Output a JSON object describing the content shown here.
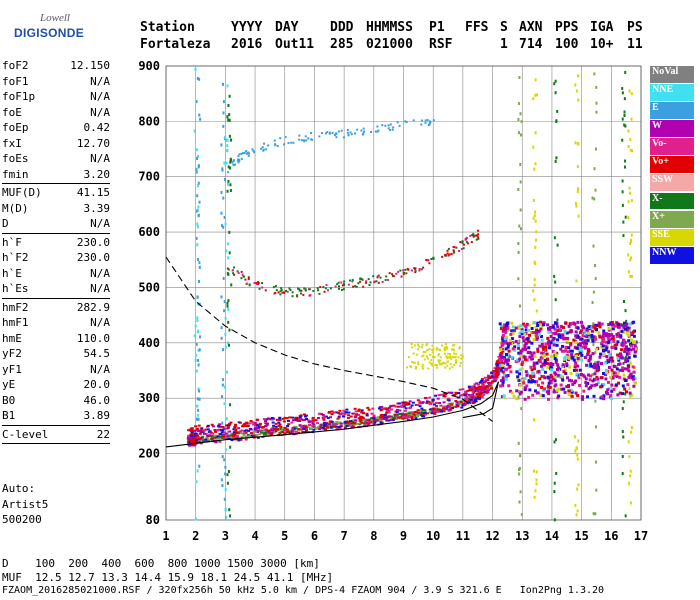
{
  "logo": {
    "line1": "Lowell",
    "line2": "DIGISONDE"
  },
  "header": {
    "labels": [
      "Station",
      "YYYY",
      "DAY",
      "DDD",
      "HHMMSS",
      "P1",
      "FFS",
      "S",
      "AXN",
      "PPS",
      "IGA",
      "PS"
    ],
    "values": [
      "Fortaleza",
      "2016",
      "Out11",
      "285",
      "021000",
      "RSF",
      "1",
      "714",
      "100",
      "10+",
      "11"
    ]
  },
  "params": [
    [
      {
        "label": "foF2",
        "value": "12.150"
      },
      {
        "label": "foF1",
        "value": "N/A"
      },
      {
        "label": "foF1p",
        "value": "N/A"
      },
      {
        "label": "foE",
        "value": "N/A"
      },
      {
        "label": "foEp",
        "value": "0.42"
      },
      {
        "label": "fxI",
        "value": "12.70"
      },
      {
        "label": "foEs",
        "value": "N/A"
      },
      {
        "label": "fmin",
        "value": "3.20"
      }
    ],
    [
      {
        "label": "MUF(D)",
        "value": "41.15"
      },
      {
        "label": "M(D)",
        "value": "3.39"
      },
      {
        "label": "D",
        "value": "N/A"
      }
    ],
    [
      {
        "label": "h`F",
        "value": "230.0"
      },
      {
        "label": "h`F2",
        "value": "230.0"
      },
      {
        "label": "h`E",
        "value": "N/A"
      },
      {
        "label": "h`Es",
        "value": "N/A"
      }
    ],
    [
      {
        "label": "hmF2",
        "value": "282.9"
      },
      {
        "label": "hmF1",
        "value": "N/A"
      },
      {
        "label": "hmE",
        "value": "110.0"
      },
      {
        "label": "yF2",
        "value": "54.5"
      },
      {
        "label": "yF1",
        "value": "N/A"
      },
      {
        "label": "yE",
        "value": "20.0"
      },
      {
        "label": "B0",
        "value": "46.0"
      },
      {
        "label": "B1",
        "value": "3.89"
      }
    ],
    [
      {
        "label": "C-level",
        "value": "22"
      }
    ]
  ],
  "auto": [
    "Auto:",
    "Artist5",
    "500200"
  ],
  "legend": [
    {
      "label": "NoVal",
      "color": "#808080"
    },
    {
      "label": "NNE",
      "color": "#40e0f0"
    },
    {
      "label": "E",
      "color": "#3b9fe0"
    },
    {
      "label": "W",
      "color": "#b000b0"
    },
    {
      "label": "Vo-",
      "color": "#e0208c"
    },
    {
      "label": "Vo+",
      "color": "#e00000"
    },
    {
      "label": "SSW",
      "color": "#f4a8a8"
    },
    {
      "label": "X-",
      "color": "#107818"
    },
    {
      "label": "X+",
      "color": "#80a850"
    },
    {
      "label": "SSE",
      "color": "#d8d800"
    },
    {
      "label": "NNW",
      "color": "#1010e0"
    }
  ],
  "bottom": {
    "d_line": "D    100  200  400  600  800 1000 1500 3000 [km]",
    "muf_line": "MUF  12.5 12.7 13.3 14.4 15.9 18.1 24.5 41.1 [MHz]",
    "file_line": "FZAOM_2016285021000.RSF / 320fx256h 50 kHz 5.0 km / DPS-4 FZAOM 904 / 3.9 S 321.6 E   Ion2Png 1.3.20"
  },
  "chart_data": {
    "type": "scatter",
    "x_ticks": [
      "1",
      "2",
      "3",
      "4",
      "5",
      "6",
      "7",
      "8",
      "9",
      "10",
      "11",
      "12",
      "13",
      "14",
      "15",
      "16",
      "17"
    ],
    "y_ticks": [
      "200",
      "300",
      "400",
      "500",
      "600",
      "700",
      "800",
      "900"
    ],
    "x_range": [
      1,
      17
    ],
    "y_range": [
      80,
      900
    ],
    "grid": true,
    "dash_curve": {
      "x": [
        1,
        2,
        3,
        4,
        5,
        6,
        7,
        8,
        9,
        10,
        11,
        12
      ],
      "y": [
        555,
        475,
        430,
        400,
        378,
        362,
        350,
        340,
        330,
        318,
        298,
        258
      ]
    },
    "solid_curve": {
      "x": [
        1,
        3,
        5,
        7,
        9,
        10,
        11,
        11.6,
        12,
        12.2,
        12,
        11.7,
        11
      ],
      "y": [
        212,
        225,
        234,
        244,
        258,
        266,
        278,
        290,
        305,
        330,
        282,
        272,
        265
      ]
    },
    "trace_o": {
      "x": [
        1.7,
        2,
        3,
        4,
        5,
        6,
        7,
        8,
        9,
        10,
        11,
        11.5,
        12,
        12.3
      ],
      "y": [
        230,
        235,
        240,
        246,
        252,
        258,
        264,
        270,
        278,
        290,
        302,
        314,
        340,
        380
      ]
    },
    "trace_x": {
      "x": [
        1.7,
        2,
        3,
        4,
        5,
        6,
        7,
        8,
        9,
        10,
        11,
        11.5,
        12
      ],
      "y": [
        222,
        226,
        232,
        238,
        244,
        250,
        256,
        262,
        270,
        280,
        294,
        306,
        330
      ]
    },
    "echo_2f": {
      "x": [
        3,
        4,
        5,
        6,
        7,
        8,
        9,
        10,
        11,
        11.5
      ],
      "y": [
        540,
        505,
        492,
        495,
        505,
        515,
        528,
        550,
        580,
        598
      ]
    },
    "echo_e": {
      "x": [
        3,
        3.5,
        4,
        5,
        6,
        7,
        8,
        9,
        10
      ],
      "y": [
        710,
        740,
        750,
        768,
        775,
        780,
        788,
        795,
        802
      ]
    },
    "spread_f": {
      "x_range": [
        12.2,
        16.8
      ],
      "y_range": [
        300,
        440
      ]
    }
  }
}
